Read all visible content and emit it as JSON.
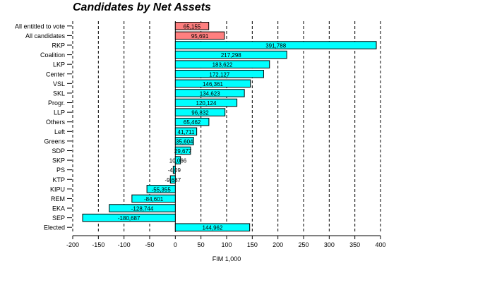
{
  "chart_data": {
    "type": "bar",
    "orientation": "horizontal",
    "title": "Candidates by Net Assets",
    "xlabel": "FIM 1,000",
    "ylabel": "",
    "xlim": [
      -200,
      400
    ],
    "xticks": [
      -200,
      -150,
      -100,
      -50,
      0,
      50,
      100,
      150,
      200,
      250,
      300,
      350,
      400
    ],
    "xtick_labels": [
      "-200",
      "-150",
      "-100",
      "-50",
      "0",
      "50",
      "100",
      "150",
      "200",
      "250",
      "300",
      "350",
      "400"
    ],
    "grid": "vertical dashed",
    "colors": {
      "highlight": "#ff7f7f",
      "default": "#00ffff",
      "grid": "#000000"
    },
    "categories": [
      "All entitled to vote",
      "All candidates",
      "RKP",
      "Coalition",
      "LKP",
      "Center",
      "VSL",
      "SKL",
      "Progr.",
      "LLP",
      "Others",
      "Left",
      "Greens",
      "SDP",
      "SKP",
      "PS",
      "KTP",
      "KIPU",
      "REM",
      "EKA",
      "SEP",
      "Elected"
    ],
    "values": [
      65.155,
      95.691,
      391.788,
      217.298,
      183.622,
      172.127,
      146.361,
      134.623,
      120.124,
      96.832,
      65.462,
      41.711,
      35.604,
      29.677,
      10.066,
      -4.09,
      -9.687,
      -55.355,
      -84.601,
      -128.744,
      -180.687,
      144.962
    ],
    "data_labels": [
      "65,155",
      "95,691",
      "391,788",
      "217,298",
      "183,622",
      "172,127",
      "146,361",
      "134,623",
      "120,124",
      "96,832",
      "65,462",
      "41,711",
      "35,604",
      "29,677",
      "10,066",
      "-4,09",
      "-9,687",
      "-55,355",
      "-84,601",
      "-128,744",
      "-180,687",
      "144,962"
    ],
    "highlighted": [
      "All entitled to vote",
      "All candidates"
    ]
  }
}
